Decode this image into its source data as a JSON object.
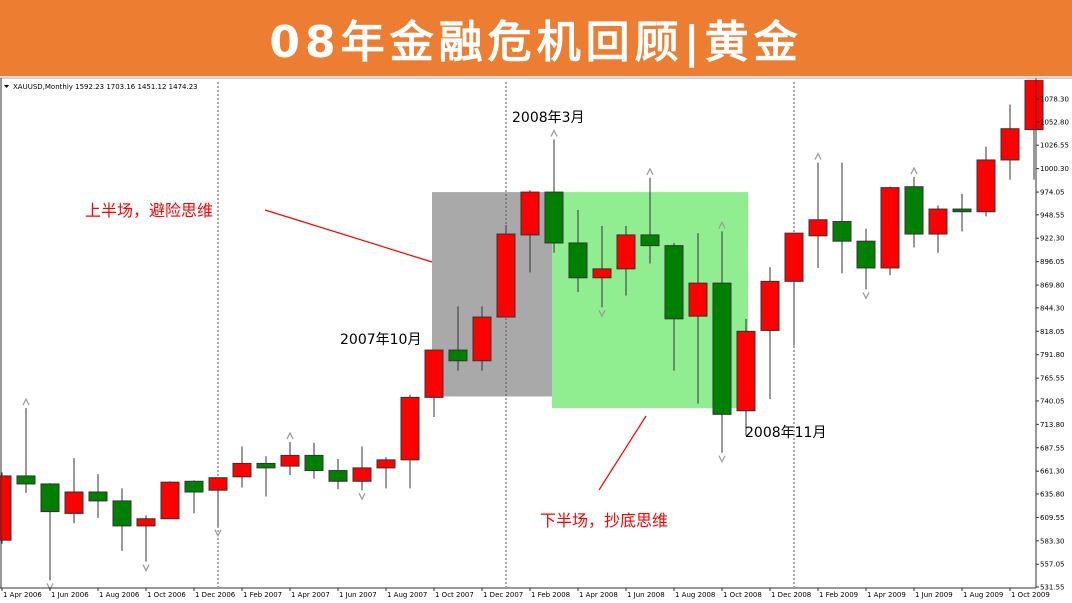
{
  "banner": {
    "title": "08年金融危机回顾|黄金",
    "background": "#ED7D31"
  },
  "chart_data": {
    "type": "candlestick",
    "symbol_info": "XAUUSD,Monthly  1592.23 1703.16 1451.12 1474.23",
    "colors": {
      "up": "#ff0000",
      "down": "#008000",
      "shade_first_half": "#a9a9a9",
      "shade_second_half": "#90ee90",
      "annotation": "#ff0000"
    },
    "ylim": [
      531.55,
      1078.3
    ],
    "y_ticks": [
      "1078.30",
      "1052.80",
      "1026.55",
      "1000.30",
      "974.05",
      "948.55",
      "922.30",
      "896.05",
      "869.80",
      "844.30",
      "818.05",
      "791.80",
      "765.55",
      "740.05",
      "713.80",
      "687.55",
      "661.30",
      "635.80",
      "609.55",
      "583.30",
      "557.05",
      "531.55"
    ],
    "x_ticks": [
      "1 Apr 2006",
      "1 Jun 2006",
      "1 Aug 2006",
      "1 Oct 2006",
      "1 Dec 2006",
      "1 Feb 2007",
      "1 Apr 2007",
      "1 Jun 2007",
      "1 Aug 2007",
      "1 Oct 2007",
      "1 Dec 2007",
      "1 Feb 2008",
      "1 Apr 2008",
      "1 Jun 2008",
      "1 Aug 2008",
      "1 Oct 2008",
      "1 Dec 2008",
      "1 Feb 2009",
      "1 Apr 2009",
      "1 Jun 2009",
      "1 Aug 2009",
      "1 Oct 2009"
    ],
    "period_separators": [
      "Dec 2006",
      "Dec 2007",
      "Dec 2008"
    ],
    "candles": [
      {
        "t": "2006-04",
        "o": 584,
        "h": 660,
        "l": 580,
        "c": 656
      },
      {
        "t": "2006-05",
        "o": 656,
        "h": 732,
        "l": 637,
        "c": 647
      },
      {
        "t": "2006-06",
        "o": 647,
        "h": 648,
        "l": 539,
        "c": 616
      },
      {
        "t": "2006-07",
        "o": 614,
        "h": 676,
        "l": 603,
        "c": 638
      },
      {
        "t": "2006-08",
        "o": 638,
        "h": 658,
        "l": 609,
        "c": 628
      },
      {
        "t": "2006-09",
        "o": 628,
        "h": 642,
        "l": 572,
        "c": 600
      },
      {
        "t": "2006-10",
        "o": 600,
        "h": 612,
        "l": 560,
        "c": 608
      },
      {
        "t": "2006-11",
        "o": 608,
        "h": 650,
        "l": 608,
        "c": 649
      },
      {
        "t": "2006-12",
        "o": 650,
        "h": 651,
        "l": 614,
        "c": 638
      },
      {
        "t": "2007-01",
        "o": 640,
        "h": 654,
        "l": 599,
        "c": 654
      },
      {
        "t": "2007-02",
        "o": 655,
        "h": 689,
        "l": 643,
        "c": 670
      },
      {
        "t": "2007-03",
        "o": 670,
        "h": 678,
        "l": 633,
        "c": 665
      },
      {
        "t": "2007-04",
        "o": 667,
        "h": 694,
        "l": 657,
        "c": 679
      },
      {
        "t": "2007-05",
        "o": 679,
        "h": 693,
        "l": 653,
        "c": 662
      },
      {
        "t": "2007-06",
        "o": 662,
        "h": 675,
        "l": 641,
        "c": 650
      },
      {
        "t": "2007-07",
        "o": 650,
        "h": 689,
        "l": 640,
        "c": 665
      },
      {
        "t": "2007-08",
        "o": 665,
        "h": 677,
        "l": 642,
        "c": 674
      },
      {
        "t": "2007-09",
        "o": 674,
        "h": 747,
        "l": 642,
        "c": 744
      },
      {
        "t": "2007-10",
        "o": 744,
        "h": 797,
        "l": 722,
        "c": 797
      },
      {
        "t": "2007-11",
        "o": 797,
        "h": 846,
        "l": 774,
        "c": 785
      },
      {
        "t": "2007-12",
        "o": 785,
        "h": 846,
        "l": 774,
        "c": 834
      },
      {
        "t": "2008-01",
        "o": 834,
        "h": 937,
        "l": 834,
        "c": 927
      },
      {
        "t": "2008-02",
        "o": 926,
        "h": 976,
        "l": 884,
        "c": 974
      },
      {
        "t": "2008-03",
        "o": 974,
        "h": 1033,
        "l": 906,
        "c": 917
      },
      {
        "t": "2008-04",
        "o": 917,
        "h": 954,
        "l": 862,
        "c": 878
      },
      {
        "t": "2008-05",
        "o": 878,
        "h": 936,
        "l": 845,
        "c": 888
      },
      {
        "t": "2008-06",
        "o": 888,
        "h": 936,
        "l": 858,
        "c": 926
      },
      {
        "t": "2008-07",
        "o": 926,
        "h": 990,
        "l": 894,
        "c": 914
      },
      {
        "t": "2008-08",
        "o": 914,
        "h": 917,
        "l": 774,
        "c": 832
      },
      {
        "t": "2008-09",
        "o": 835,
        "h": 928,
        "l": 737,
        "c": 872
      },
      {
        "t": "2008-10",
        "o": 872,
        "h": 930,
        "l": 682,
        "c": 725
      },
      {
        "t": "2008-11",
        "o": 729,
        "h": 832,
        "l": 701,
        "c": 818
      },
      {
        "t": "2008-12",
        "o": 819,
        "h": 890,
        "l": 742,
        "c": 874
      },
      {
        "t": "2009-01",
        "o": 874,
        "h": 928,
        "l": 802,
        "c": 928
      },
      {
        "t": "2009-02",
        "o": 925,
        "h": 1007,
        "l": 889,
        "c": 943
      },
      {
        "t": "2009-03",
        "o": 941,
        "h": 1007,
        "l": 883,
        "c": 919
      },
      {
        "t": "2009-04",
        "o": 919,
        "h": 933,
        "l": 865,
        "c": 889
      },
      {
        "t": "2009-05",
        "o": 889,
        "h": 980,
        "l": 881,
        "c": 979
      },
      {
        "t": "2009-06",
        "o": 980,
        "h": 991,
        "l": 912,
        "c": 927
      },
      {
        "t": "2009-07",
        "o": 927,
        "h": 959,
        "l": 906,
        "c": 955
      },
      {
        "t": "2009-08",
        "o": 955,
        "h": 972,
        "l": 930,
        "c": 952
      },
      {
        "t": "2009-09",
        "o": 952,
        "h": 1025,
        "l": 947,
        "c": 1010
      },
      {
        "t": "2009-10",
        "o": 1010,
        "h": 1072,
        "l": 988,
        "c": 1045
      },
      {
        "t": "2009-11",
        "o": 1044,
        "h": 1110,
        "l": 988,
        "c": 1100
      }
    ],
    "fractals_up": [
      "2006-05",
      "2007-04",
      "2008-03",
      "2008-07",
      "2008-10",
      "2009-02",
      "2009-06"
    ],
    "fractals_down": [
      "2006-06",
      "2006-10",
      "2007-01",
      "2007-07",
      "2008-05",
      "2008-10",
      "2009-04"
    ],
    "annotations": {
      "first_half": "上半场，避险思维",
      "second_half": "下半场，抄底思维",
      "oct_2007": "2007年10月",
      "mar_2008": "2008年3月",
      "nov_2008": "2008年11月"
    }
  }
}
